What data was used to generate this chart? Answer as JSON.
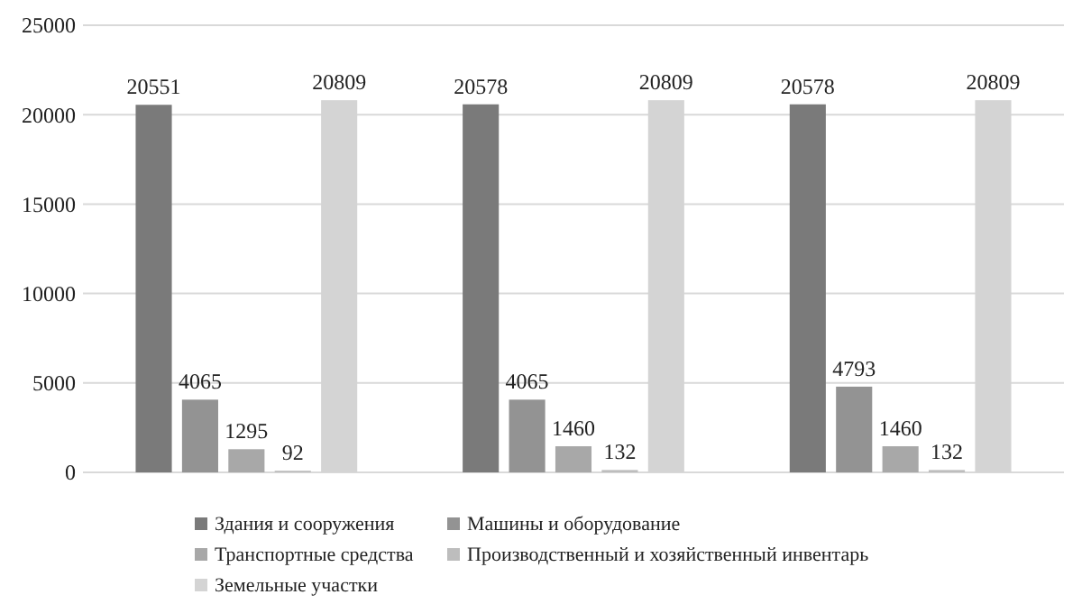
{
  "chart_data": {
    "type": "bar",
    "categories": [
      null,
      null,
      null
    ],
    "series": [
      {
        "name": "Здания и сооружения",
        "color": "#7a7a7a",
        "values": [
          20551,
          20578,
          20578
        ]
      },
      {
        "name": "Машины и оборудование",
        "color": "#939393",
        "values": [
          4065,
          4065,
          4793
        ]
      },
      {
        "name": "Транспортные средства",
        "color": "#a8a8a8",
        "values": [
          1295,
          1460,
          1460
        ]
      },
      {
        "name": "Производственный и хозяйственный инвентарь",
        "color": "#bdbdbd",
        "values": [
          92,
          132,
          132
        ]
      },
      {
        "name": "Земельные участки",
        "color": "#d4d4d4",
        "values": [
          20809,
          20809,
          20809
        ]
      }
    ],
    "ylim": [
      0,
      25000
    ],
    "yticks": [
      0,
      5000,
      10000,
      15000,
      20000,
      25000
    ],
    "grid": true,
    "data_labels": true,
    "legend": "bottom"
  }
}
